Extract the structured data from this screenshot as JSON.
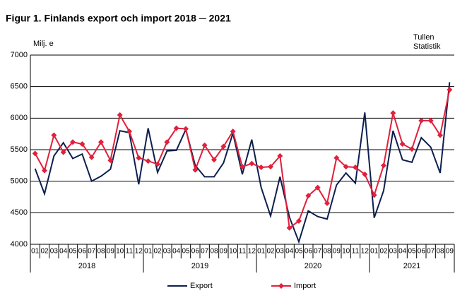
{
  "chart_data": {
    "type": "line",
    "title": "Figur 1. Finlands export och import 2018 ─ 2021",
    "y_label": "Milj. e",
    "source": [
      "Tullen",
      "Statistik"
    ],
    "categories": [
      "01",
      "02",
      "03",
      "04",
      "05",
      "06",
      "07",
      "08",
      "09",
      "10",
      "11",
      "12",
      "01",
      "02",
      "03",
      "04",
      "05",
      "06",
      "07",
      "08",
      "09",
      "10",
      "11",
      "12",
      "01",
      "02",
      "03",
      "04",
      "05",
      "06",
      "07",
      "08",
      "09",
      "10",
      "11",
      "12",
      "01",
      "02",
      "03",
      "04",
      "05",
      "06",
      "07",
      "08",
      "09"
    ],
    "years": [
      "2018",
      "2019",
      "2020",
      "2021"
    ],
    "series": [
      {
        "name": "Export",
        "color": "#0d1f4f",
        "marker": false,
        "values": [
          5200,
          4800,
          5400,
          5610,
          5360,
          5430,
          5000,
          5080,
          5190,
          5800,
          5770,
          4950,
          5840,
          5140,
          5480,
          5490,
          5820,
          5250,
          5070,
          5070,
          5290,
          5760,
          5110,
          5660,
          4900,
          4450,
          5070,
          4430,
          4040,
          4530,
          4440,
          4400,
          4940,
          5130,
          4970,
          6090,
          4420,
          4850,
          5800,
          5340,
          5300,
          5690,
          5540,
          5130,
          6570
        ]
      },
      {
        "name": "Import",
        "color": "#e0203c",
        "marker": true,
        "values": [
          5440,
          5170,
          5730,
          5460,
          5620,
          5590,
          5380,
          5620,
          5330,
          6050,
          5790,
          5370,
          5320,
          5270,
          5620,
          5840,
          5830,
          5180,
          5570,
          5340,
          5550,
          5790,
          5230,
          5280,
          5220,
          5230,
          5400,
          4260,
          4370,
          4770,
          4900,
          4650,
          5370,
          5230,
          5220,
          5110,
          4780,
          5250,
          6080,
          5590,
          5510,
          5960,
          5960,
          5730,
          6450
        ]
      }
    ],
    "ylim": [
      4000,
      7000
    ],
    "yticks": [
      4000,
      4500,
      5000,
      5500,
      6000,
      6500,
      7000
    ],
    "grid": true
  }
}
